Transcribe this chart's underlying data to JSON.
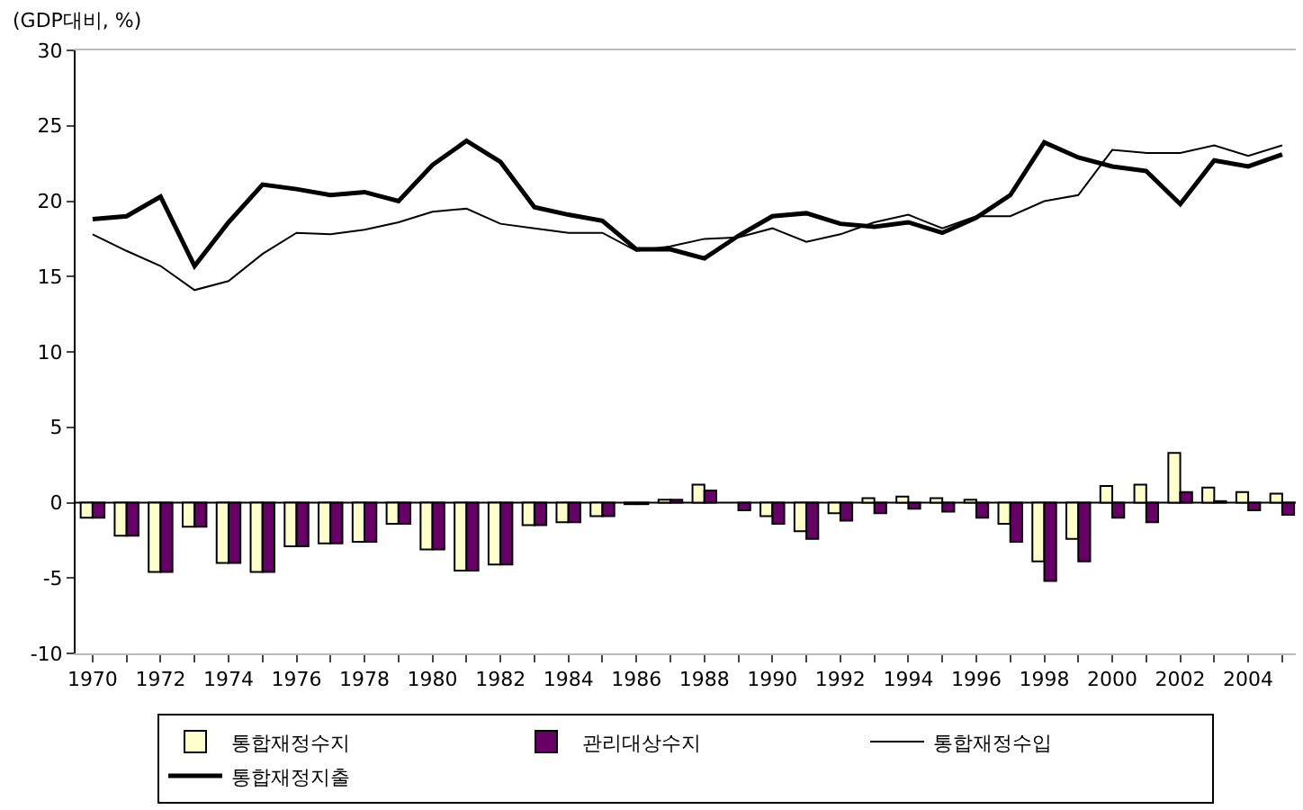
{
  "chart_data": {
    "type": "bar",
    "ylabel": "(GDP대비, %)",
    "x": [
      1970,
      1971,
      1972,
      1973,
      1974,
      1975,
      1976,
      1977,
      1978,
      1979,
      1980,
      1981,
      1982,
      1983,
      1984,
      1985,
      1986,
      1987,
      1988,
      1989,
      1990,
      1991,
      1992,
      1993,
      1994,
      1995,
      1996,
      1997,
      1998,
      1999,
      2000,
      2001,
      2002,
      2003,
      2004,
      2005
    ],
    "series": [
      {
        "name": "통합재정수지",
        "color": "#ffffcc",
        "values": [
          -1.0,
          -2.2,
          -4.6,
          -1.6,
          -4.0,
          -4.6,
          -2.9,
          -2.7,
          -2.6,
          -1.4,
          -3.1,
          -4.5,
          -4.1,
          -1.5,
          -1.3,
          -0.9,
          -0.1,
          0.2,
          1.2,
          null,
          -0.9,
          -1.9,
          -0.7,
          0.3,
          0.4,
          0.3,
          0.2,
          -1.4,
          -3.9,
          -2.4,
          1.1,
          1.2,
          3.3,
          1.0,
          0.7,
          0.6
        ]
      },
      {
        "name": "관리대상수지",
        "color": "#660066",
        "values": [
          -1.0,
          -2.2,
          -4.6,
          -1.6,
          -4.0,
          -4.6,
          -2.9,
          -2.7,
          -2.6,
          -1.4,
          -3.1,
          -4.5,
          -4.1,
          -1.5,
          -1.3,
          -0.9,
          -0.1,
          0.2,
          0.8,
          -0.5,
          -1.4,
          -2.4,
          -1.2,
          -0.7,
          -0.4,
          -0.6,
          -1.0,
          -2.6,
          -5.2,
          -3.9,
          -1.0,
          -1.3,
          0.7,
          0.1,
          -0.5,
          -0.8
        ]
      },
      {
        "name": "통합재정수입",
        "type": "line",
        "color": "#000000",
        "values": [
          17.8,
          16.7,
          15.7,
          14.1,
          14.7,
          16.5,
          17.9,
          17.8,
          18.1,
          18.6,
          19.3,
          19.5,
          18.5,
          18.2,
          17.9,
          17.9,
          16.7,
          17.0,
          17.5,
          17.6,
          18.2,
          17.3,
          17.8,
          18.6,
          19.1,
          18.2,
          19.0,
          19.0,
          20.0,
          20.4,
          23.4,
          23.2,
          23.2,
          23.7,
          23.0,
          23.7
        ]
      },
      {
        "name": "통합재정지출",
        "type": "line",
        "color": "#000000",
        "values": [
          18.8,
          19.0,
          20.3,
          15.7,
          18.6,
          21.1,
          20.8,
          20.4,
          20.6,
          20.0,
          22.4,
          24.0,
          22.6,
          19.6,
          19.1,
          18.7,
          16.8,
          16.8,
          16.2,
          17.7,
          19.0,
          19.2,
          18.5,
          18.3,
          18.6,
          17.9,
          18.9,
          20.4,
          23.9,
          22.9,
          22.3,
          22.0,
          19.8,
          22.7,
          22.3,
          23.1
        ]
      }
    ],
    "xlim": [
      1969.5,
      2005.4
    ],
    "xticks": [
      1970,
      {
        "value": 1971,
        "label": null
      },
      1972,
      {
        "value": 1973,
        "label": null
      },
      1974,
      {
        "value": 1975,
        "label": null
      },
      1976,
      {
        "value": 1977,
        "label": null
      },
      1978,
      {
        "value": 1979,
        "label": null
      },
      1980,
      {
        "value": 1981,
        "label": null
      },
      1982,
      {
        "value": 1983,
        "label": null
      },
      1984,
      {
        "value": 1985,
        "label": null
      },
      1986,
      {
        "value": 1987,
        "label": null
      },
      1988,
      {
        "value": 1989,
        "label": null
      },
      1990,
      {
        "value": 1991,
        "label": null
      },
      1992,
      {
        "value": 1993,
        "label": null
      },
      1994,
      {
        "value": 1995,
        "label": null
      },
      1996,
      {
        "value": 1997,
        "label": null
      },
      1998,
      {
        "value": 1999,
        "label": null
      },
      2000,
      {
        "value": 2001,
        "label": null
      },
      2002,
      {
        "value": 2003,
        "label": null
      },
      2004,
      {
        "value": 2005,
        "label": null
      }
    ],
    "ylim": [
      -10,
      30
    ],
    "yticks": [
      -10,
      -5,
      0,
      5,
      10,
      15,
      20,
      25,
      30
    ],
    "ref_lines": [
      {
        "axis": "y",
        "value": 0,
        "color": "#000000"
      }
    ],
    "legend": "bottom",
    "marker": "none"
  }
}
